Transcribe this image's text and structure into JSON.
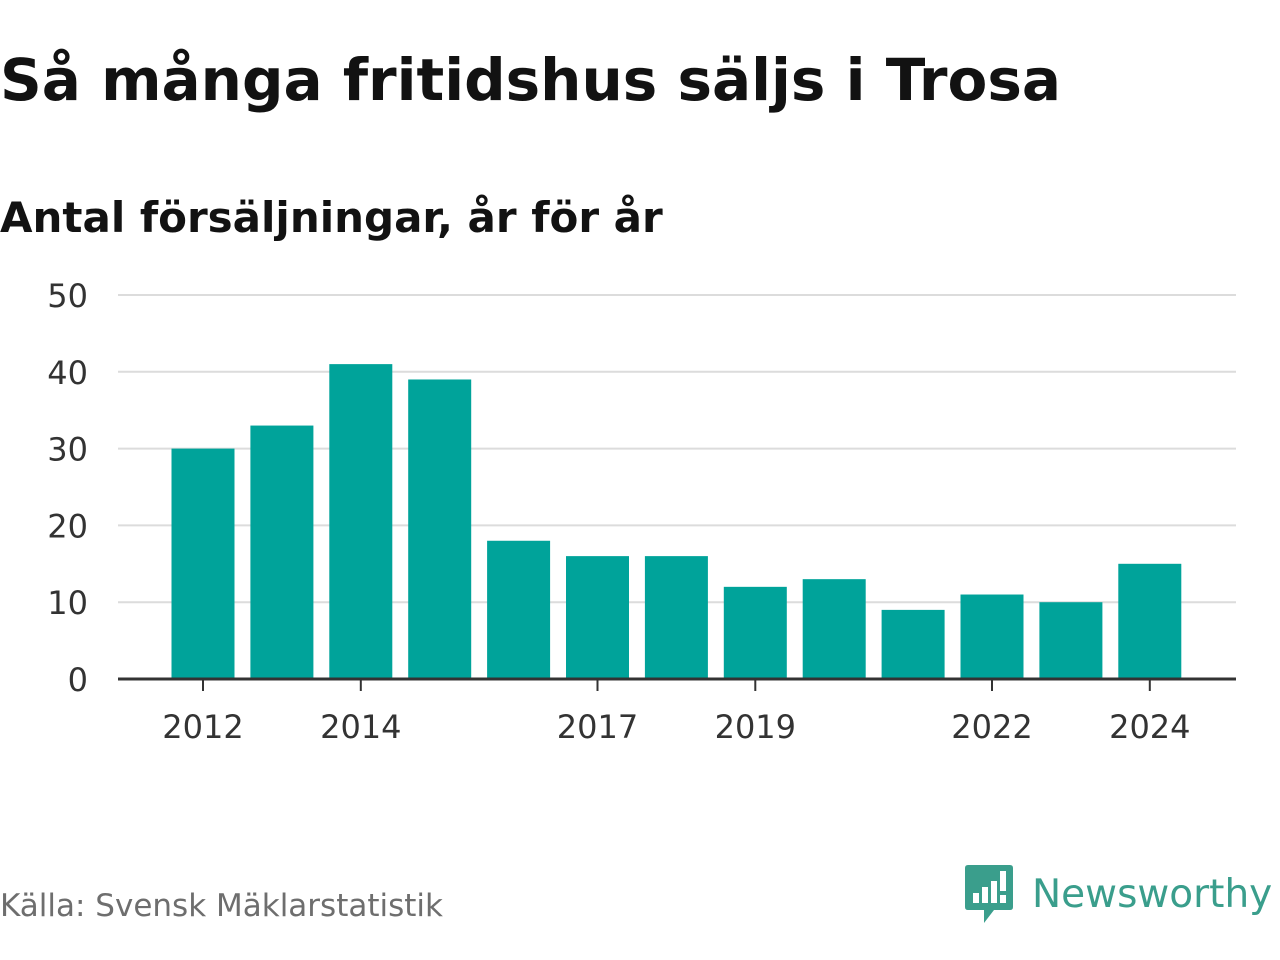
{
  "header": {
    "title": "Så många fritidshus säljs i Trosa",
    "subtitle": "Antal försäljningar, år för år"
  },
  "footer": {
    "source": "Källa: Svensk Mäklarstatistik",
    "brand": "Newsworthy"
  },
  "colors": {
    "bar": "#00a39a",
    "grid": "#dcdcdc",
    "axis": "#333333",
    "brand": "#3a9e8c",
    "source": "#6e6e6e"
  },
  "icons": {
    "brand_logo": "newsworthy-logo-icon"
  },
  "chart_data": {
    "type": "bar",
    "title": "Så många fritidshus säljs i Trosa",
    "subtitle": "Antal försäljningar, år för år",
    "xlabel": "",
    "ylabel": "",
    "categories": [
      "2012",
      "2013",
      "2014",
      "2015",
      "2016",
      "2017",
      "2018",
      "2019",
      "2020",
      "2021",
      "2022",
      "2023",
      "2024"
    ],
    "values": [
      30,
      33,
      41,
      39,
      18,
      16,
      16,
      12,
      13,
      9,
      11,
      10,
      15
    ],
    "x_tick_labels": [
      "2012",
      "2014",
      "2017",
      "2019",
      "2022",
      "2024"
    ],
    "y_ticks": [
      0,
      10,
      20,
      30,
      40,
      50
    ],
    "ylim": [
      0,
      50
    ],
    "grid": true,
    "legend": "none"
  }
}
